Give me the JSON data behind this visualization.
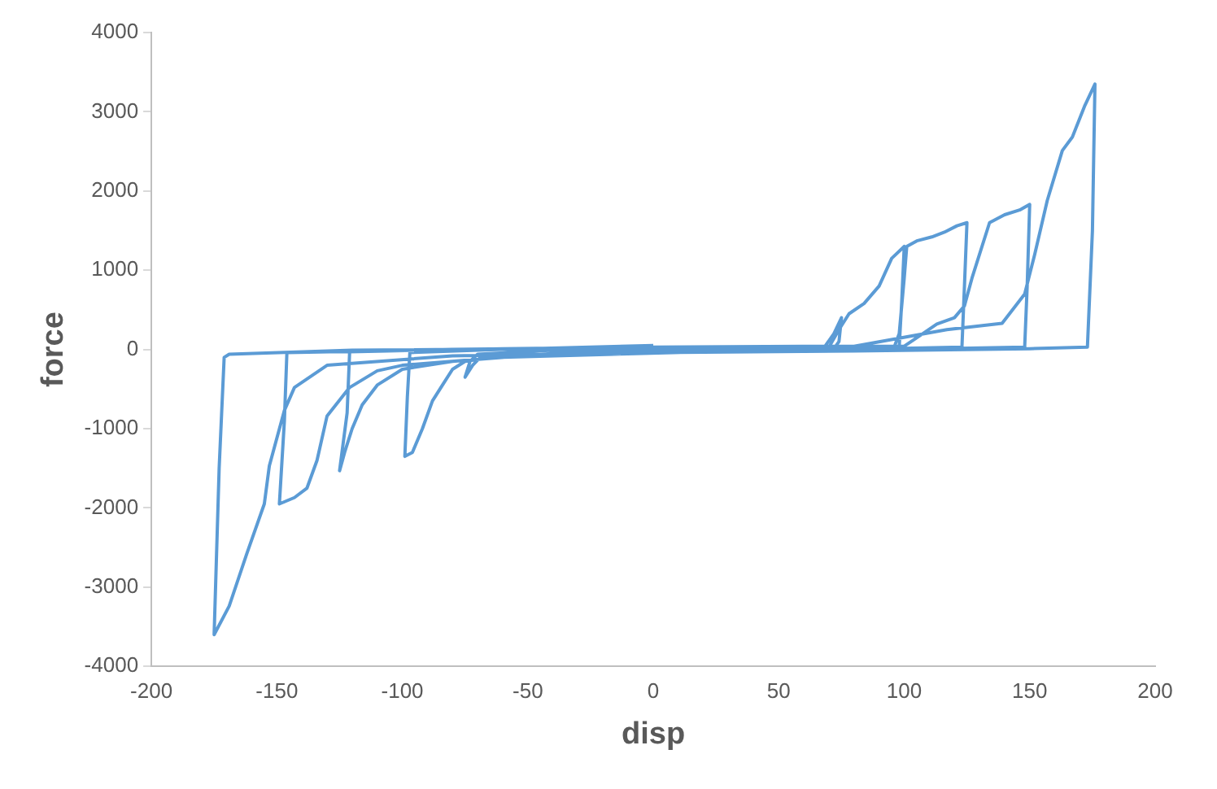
{
  "chart_data": {
    "type": "line",
    "xlabel": "disp",
    "ylabel": "force",
    "color": "#5b9bd5",
    "marker": "none",
    "grid": false,
    "legend": false,
    "xlim": [
      -200,
      200
    ],
    "xticks": [
      -200,
      -150,
      -100,
      -50,
      0,
      50,
      100,
      150,
      200
    ],
    "ylim": [
      -4000,
      4000
    ],
    "yticks": [
      -4000,
      -3000,
      -2000,
      -1000,
      0,
      1000,
      2000,
      3000,
      4000
    ],
    "x": [
      0,
      40,
      68,
      72,
      75,
      74,
      72,
      40,
      0,
      -40,
      -68,
      -72,
      -75,
      -73,
      -70,
      -40,
      0,
      40,
      70,
      74,
      78,
      84,
      90,
      95,
      100,
      99,
      98,
      60,
      20,
      -20,
      -60,
      -75,
      -80,
      -84,
      -88,
      -92,
      -96,
      -99,
      -98,
      -97,
      -60,
      0,
      50,
      96,
      98,
      100,
      101,
      105,
      111,
      116,
      121,
      125,
      124,
      123,
      80,
      20,
      -40,
      -80,
      -100,
      -110,
      -116,
      -120,
      -123,
      -125,
      -122,
      -121,
      -60,
      0,
      60,
      100,
      106,
      113,
      120,
      124,
      127,
      130,
      134,
      140,
      146,
      150,
      149,
      148,
      100,
      20,
      -60,
      -100,
      -110,
      -121,
      -130,
      -134,
      -138,
      -143,
      -149,
      -147,
      -146,
      -80,
      0,
      80,
      117,
      139,
      148,
      152,
      157,
      163,
      167,
      172,
      176,
      175,
      173,
      150,
      80,
      0,
      -80,
      -130,
      -143,
      -147,
      -153,
      -155,
      -162,
      -169,
      -175,
      -173,
      -171,
      -169,
      -120,
      -50,
      0
    ],
    "values": [
      0,
      10,
      20,
      200,
      400,
      100,
      10,
      -20,
      -40,
      -60,
      -70,
      -200,
      -350,
      -150,
      -60,
      -10,
      10,
      20,
      30,
      250,
      450,
      580,
      800,
      1150,
      1300,
      600,
      30,
      0,
      -20,
      -40,
      -80,
      -150,
      -250,
      -450,
      -650,
      -1000,
      -1300,
      -1350,
      -600,
      -40,
      0,
      20,
      30,
      30,
      200,
      900,
      1300,
      1370,
      1420,
      1480,
      1560,
      1600,
      800,
      30,
      0,
      -20,
      -50,
      -150,
      -250,
      -450,
      -700,
      -1000,
      -1300,
      -1530,
      -800,
      -30,
      10,
      30,
      40,
      40,
      170,
      320,
      400,
      550,
      900,
      1200,
      1600,
      1700,
      1760,
      1830,
      800,
      30,
      0,
      -30,
      -100,
      -200,
      -270,
      -480,
      -840,
      -1400,
      -1750,
      -1870,
      -1950,
      -900,
      -40,
      0,
      30,
      40,
      250,
      330,
      700,
      1200,
      1880,
      2510,
      2680,
      3080,
      3350,
      1500,
      30,
      10,
      -20,
      -40,
      -80,
      -200,
      -480,
      -770,
      -1470,
      -1950,
      -2580,
      -3240,
      -3600,
      -1500,
      -100,
      -60,
      -10,
      10,
      50
    ]
  }
}
